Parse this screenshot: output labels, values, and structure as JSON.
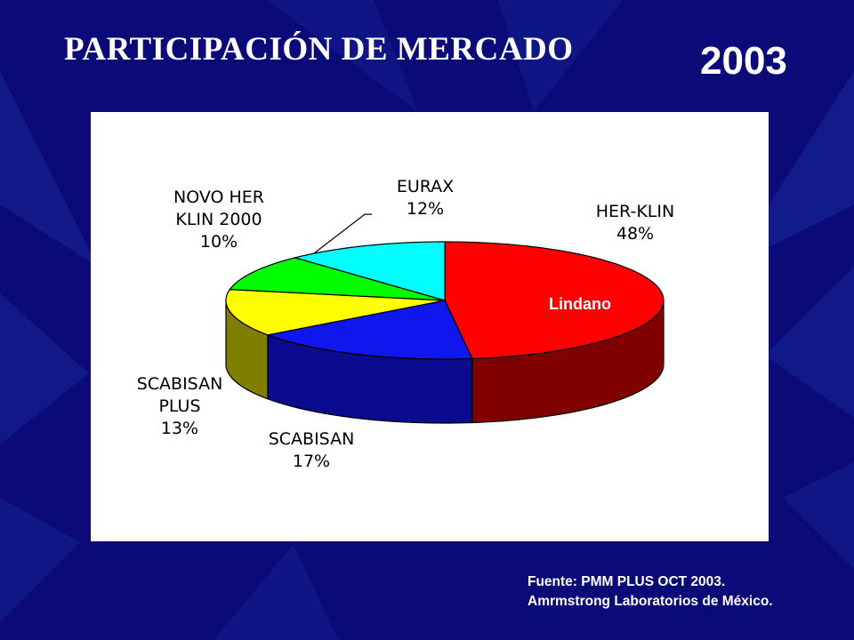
{
  "slide": {
    "title": "PARTICIPACIÓN DE MERCADO",
    "year": "2003",
    "source_line1": "Fuente: PMM PLUS OCT 2003.",
    "source_line2": "Amrmstrong Laboratorios de México."
  },
  "colors": {
    "background": "#0a0a78",
    "panel": "#ffffff"
  },
  "chart_data": {
    "type": "pie",
    "title": "",
    "style": "3d",
    "series": [
      {
        "name": "",
        "slices": [
          {
            "label": "HER-KLIN",
            "value": 48,
            "display": "48%",
            "color": "#ff0000",
            "side": "#800000"
          },
          {
            "label": "SCABISAN",
            "value": 17,
            "display": "17%",
            "color": "#0f16ee",
            "side": "#0b0b90"
          },
          {
            "label": "SCABISAN PLUS",
            "value": 13,
            "display": "13%",
            "color": "#ffff00",
            "side": "#7e7e00"
          },
          {
            "label": "NOVO HER KLIN 2000",
            "value": 10,
            "display": "10%",
            "color": "#00ff00",
            "side": "#008000"
          },
          {
            "label": "EURAX",
            "value": 12,
            "display": "12%",
            "color": "#00ffff",
            "side": "#008080"
          }
        ]
      }
    ],
    "label_lines": {
      "HER-KLIN": [
        "HER-KLIN",
        "48%"
      ],
      "SCABISAN": [
        "SCABISAN",
        "17%"
      ],
      "SCABISAN PLUS": [
        "SCABISAN",
        "PLUS",
        "13%"
      ],
      "NOVO HER KLIN 2000": [
        "NOVO HER",
        "KLIN 2000",
        "10%"
      ],
      "EURAX": [
        "EURAX",
        "12%"
      ]
    },
    "annotation": "Lindano",
    "annotation_color": "#ffffff"
  }
}
